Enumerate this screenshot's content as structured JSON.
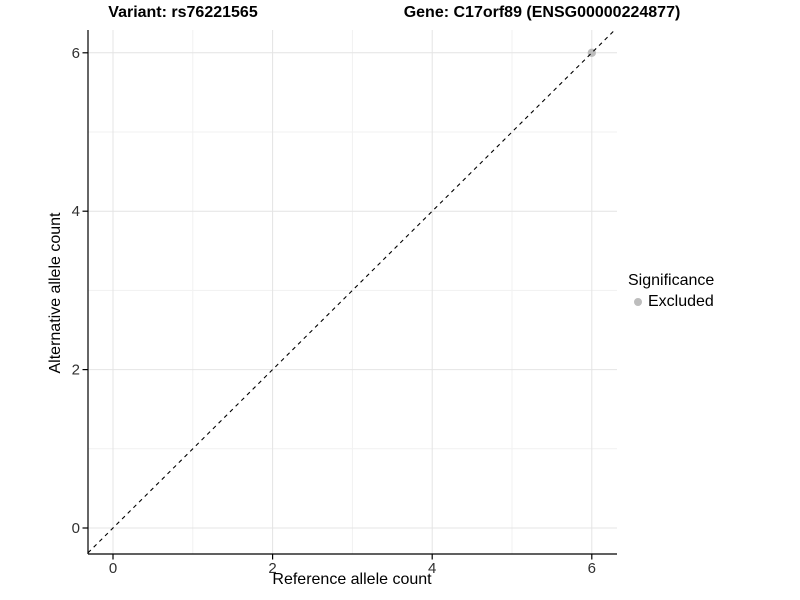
{
  "header": {
    "variant_title": "Variant: rs76221565",
    "gene_title": "Gene: C17orf89 (ENSG00000224877)"
  },
  "chart_data": {
    "type": "scatter",
    "title": "",
    "xlabel": "Reference allele count",
    "ylabel": "Alternative allele count",
    "xlim": [
      -0.315,
      6.315
    ],
    "ylim": [
      -0.315,
      6.315
    ],
    "x_ticks": [
      0,
      2,
      4,
      6
    ],
    "y_ticks": [
      0,
      2,
      4,
      6
    ],
    "x_minor_ticks": [
      1,
      3,
      5
    ],
    "y_minor_ticks": [
      1,
      3,
      5
    ],
    "grid": true,
    "identity_line": {
      "type": "abline",
      "slope": 1,
      "intercept": 0,
      "style": "dashed",
      "color": "#000000"
    },
    "series": [
      {
        "name": "Excluded",
        "color": "#bdbdbd",
        "points": [
          {
            "x": 6,
            "y": 6
          }
        ]
      }
    ],
    "legend": {
      "title": "Significance",
      "position": "right",
      "entries": [
        {
          "label": "Excluded",
          "color": "#bdbdbd"
        }
      ]
    }
  },
  "colors": {
    "background": "#ffffff",
    "grid_major": "#e4e4e4",
    "grid_minor": "#f1f1f1",
    "axis_line": "#000000",
    "tick_label": "#303030",
    "point": "#bdbdbd"
  }
}
